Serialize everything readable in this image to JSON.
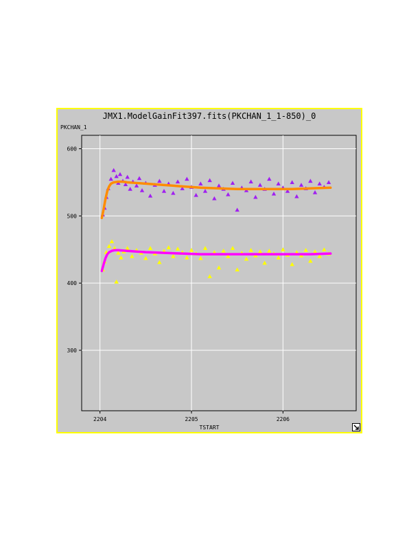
{
  "chart_data": {
    "type": "scatter",
    "title": "JMX1.ModelGainFit397.fits(PKCHAN_1_1-850)_0",
    "ylabel": "PKCHAN_1",
    "xlabel": "TSTART",
    "xlim": [
      2203.8,
      2206.8
    ],
    "ylim": [
      210,
      620
    ],
    "x_ticks": [
      2204,
      2205,
      2206
    ],
    "y_ticks": [
      300,
      400,
      500,
      600
    ],
    "grid": true,
    "series": [
      {
        "kind": "scatter",
        "marker": "triangle",
        "color": "#a020f0",
        "x": [
          2204.03,
          2204.05,
          2204.07,
          2204.09,
          2204.12,
          2204.15,
          2204.18,
          2204.2,
          2204.22,
          2204.25,
          2204.28,
          2204.3,
          2204.33,
          2204.36,
          2204.4,
          2204.43,
          2204.46,
          2204.5,
          2204.55,
          2204.6,
          2204.65,
          2204.7,
          2204.75,
          2204.8,
          2204.85,
          2204.9,
          2204.95,
          2205.0,
          2205.05,
          2205.1,
          2205.15,
          2205.2,
          2205.25,
          2205.3,
          2205.35,
          2205.4,
          2205.45,
          2205.5,
          2205.55,
          2205.6,
          2205.65,
          2205.7,
          2205.75,
          2205.8,
          2205.85,
          2205.9,
          2205.95,
          2206.0,
          2206.05,
          2206.1,
          2206.15,
          2206.2,
          2206.25,
          2206.3,
          2206.35,
          2206.4,
          2206.45,
          2206.5
        ],
        "y": [
          502,
          512,
          528,
          541,
          555,
          568,
          559,
          549,
          562,
          552,
          547,
          558,
          540,
          551,
          545,
          556,
          538,
          549,
          530,
          546,
          552,
          537,
          548,
          534,
          551,
          541,
          555,
          543,
          531,
          548,
          537,
          553,
          526,
          545,
          540,
          532,
          549,
          509,
          542,
          538,
          551,
          528,
          546,
          540,
          555,
          533,
          548,
          542,
          537,
          550,
          529,
          546,
          541,
          552,
          535,
          548,
          543,
          550
        ]
      },
      {
        "kind": "line",
        "color": "#ff8c00",
        "x": [
          2204.02,
          2204.04,
          2204.06,
          2204.08,
          2204.1,
          2204.12,
          2204.15,
          2204.2,
          2204.25,
          2204.3,
          2204.4,
          2204.5,
          2204.7,
          2204.9,
          2205.1,
          2205.3,
          2205.5,
          2205.7,
          2205.9,
          2206.1,
          2206.3,
          2206.52
        ],
        "y": [
          497,
          510,
          525,
          537,
          544,
          548,
          550,
          551,
          551,
          550,
          549,
          548,
          546,
          544,
          542,
          541,
          540,
          540,
          540,
          540,
          541,
          542
        ]
      },
      {
        "kind": "scatter",
        "marker": "triangle",
        "color": "#ffff00",
        "x": [
          2204.03,
          2204.05,
          2204.07,
          2204.1,
          2204.13,
          2204.16,
          2204.18,
          2204.2,
          2204.23,
          2204.26,
          2204.3,
          2204.35,
          2204.4,
          2204.45,
          2204.5,
          2204.55,
          2204.6,
          2204.65,
          2204.7,
          2204.75,
          2204.8,
          2204.85,
          2204.9,
          2204.95,
          2205.0,
          2205.05,
          2205.1,
          2205.15,
          2205.2,
          2205.25,
          2205.3,
          2205.35,
          2205.4,
          2205.45,
          2205.5,
          2205.55,
          2205.6,
          2205.65,
          2205.7,
          2205.75,
          2205.8,
          2205.85,
          2205.9,
          2205.95,
          2206.0,
          2206.05,
          2206.1,
          2206.15,
          2206.2,
          2206.25,
          2206.3,
          2206.35,
          2206.4,
          2206.45,
          2206.5
        ],
        "y": [
          420,
          432,
          446,
          455,
          462,
          452,
          402,
          445,
          438,
          447,
          452,
          440,
          449,
          445,
          437,
          452,
          444,
          431,
          448,
          453,
          440,
          451,
          446,
          438,
          449,
          444,
          437,
          452,
          410,
          446,
          423,
          448,
          440,
          452,
          420,
          445,
          436,
          449,
          441,
          447,
          430,
          448,
          444,
          438,
          450,
          442,
          428,
          446,
          441,
          449,
          433,
          447,
          440,
          450,
          444
        ]
      },
      {
        "kind": "line",
        "color": "#ff00ff",
        "x": [
          2204.02,
          2204.04,
          2204.06,
          2204.08,
          2204.1,
          2204.13,
          2204.16,
          2204.2,
          2204.3,
          2204.4,
          2204.5,
          2204.7,
          2204.9,
          2205.1,
          2205.3,
          2205.5,
          2205.7,
          2205.9,
          2206.1,
          2206.3,
          2206.52
        ],
        "y": [
          418,
          428,
          437,
          443,
          446,
          448,
          449,
          449,
          448,
          447,
          446,
          445,
          444,
          443,
          443,
          443,
          443,
          443,
          443,
          443,
          444
        ]
      }
    ]
  }
}
